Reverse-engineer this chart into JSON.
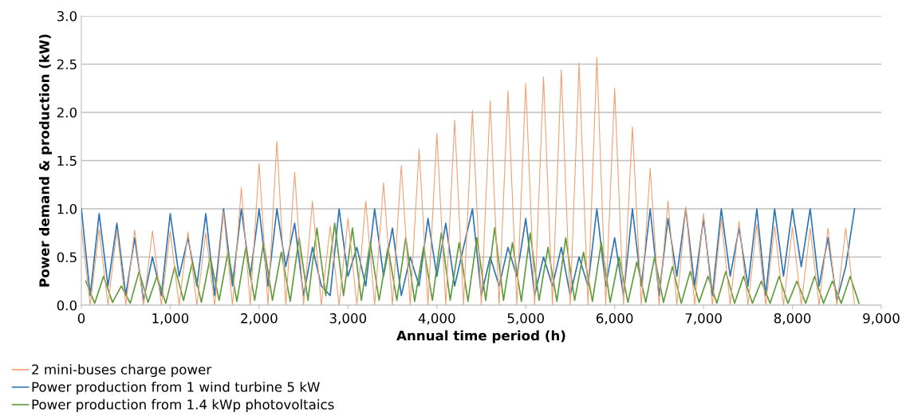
{
  "chart_data": {
    "type": "line",
    "xlabel": "Annual time period (h)",
    "ylabel": "Power demand & production (kW)",
    "xlim": [
      0,
      9000
    ],
    "xticks": [
      0,
      {
        "value": 1000,
        "label": "1,000"
      },
      {
        "value": 2000,
        "label": "2,000"
      },
      {
        "value": 3000,
        "label": "3,000"
      },
      {
        "value": 4000,
        "label": "4,000"
      },
      {
        "value": 5000,
        "label": "5,000"
      },
      {
        "value": 6000,
        "label": "6,000"
      },
      {
        "value": 7000,
        "label": "7,000"
      },
      {
        "value": 8000,
        "label": "8,000"
      },
      {
        "value": 9000,
        "label": "9,000"
      }
    ],
    "ylim": [
      0,
      3
    ],
    "yticks": [
      {
        "value": 0,
        "label": "0.0"
      },
      {
        "value": 0.5,
        "label": "0.5"
      },
      {
        "value": 1,
        "label": "1.0"
      },
      {
        "value": 1.5,
        "label": "1.5"
      },
      {
        "value": 2,
        "label": "2.0"
      },
      {
        "value": 2.5,
        "label": "2.5"
      },
      {
        "value": 3,
        "label": "3.0"
      }
    ],
    "grid": "y",
    "legend": "bottom left",
    "marker": "none",
    "line_style": "solid",
    "series": [
      {
        "name": "2 mini-buses charge power",
        "color": "#f0a070",
        "x": [
          0,
          100,
          200,
          300,
          400,
          500,
          600,
          700,
          800,
          900,
          1000,
          1100,
          1200,
          1300,
          1400,
          1500,
          1600,
          1700,
          1800,
          1900,
          2000,
          2100,
          2200,
          2300,
          2400,
          2500,
          2600,
          2700,
          2800,
          2900,
          3000,
          3100,
          3200,
          3300,
          3400,
          3500,
          3600,
          3700,
          3800,
          3900,
          4000,
          4100,
          4200,
          4300,
          4400,
          4500,
          4600,
          4700,
          4800,
          4900,
          5000,
          5100,
          5200,
          5300,
          5400,
          5500,
          5600,
          5700,
          5800,
          5900,
          6000,
          6100,
          6200,
          6300,
          6400,
          6500,
          6600,
          6700,
          6800,
          6900,
          7000,
          7100,
          7200,
          7300,
          7400,
          7500,
          7600,
          7700,
          7800,
          7900,
          8000,
          8100,
          8200,
          8300,
          8400,
          8500,
          8600,
          8700
        ],
        "values": [
          0.8,
          0,
          0.79,
          0,
          0.78,
          0,
          0.78,
          0,
          0.77,
          0,
          0.77,
          0,
          0.76,
          0,
          0.75,
          0,
          0.97,
          0,
          1.22,
          0,
          1.47,
          0,
          1.7,
          0,
          1.38,
          0,
          1.08,
          0,
          0.82,
          0,
          0.9,
          0,
          1.08,
          0,
          1.27,
          0,
          1.45,
          0,
          1.62,
          0,
          1.78,
          0,
          1.92,
          0,
          2.02,
          0,
          2.12,
          0,
          2.22,
          0,
          2.3,
          0,
          2.37,
          0,
          2.44,
          0,
          2.51,
          0,
          2.57,
          0,
          2.25,
          0,
          1.85,
          0,
          1.42,
          0,
          1.08,
          0,
          1.02,
          0,
          0.95,
          0,
          0.9,
          0,
          0.87,
          0,
          0.84,
          0,
          0.82,
          0,
          0.81,
          0,
          0.8,
          0,
          0.8,
          0,
          0.8,
          0
        ]
      },
      {
        "name": "Power production from 1 wind turbine 5 kW",
        "color": "#2e75b6",
        "x": [
          0,
          100,
          200,
          300,
          400,
          500,
          600,
          700,
          800,
          900,
          1000,
          1100,
          1200,
          1300,
          1400,
          1500,
          1600,
          1700,
          1800,
          1900,
          2000,
          2100,
          2200,
          2300,
          2400,
          2500,
          2600,
          2700,
          2800,
          2900,
          3000,
          3100,
          3200,
          3300,
          3400,
          3500,
          3600,
          3700,
          3800,
          3900,
          4000,
          4100,
          4200,
          4300,
          4400,
          4500,
          4600,
          4700,
          4800,
          4900,
          5000,
          5100,
          5200,
          5300,
          5400,
          5500,
          5600,
          5700,
          5800,
          5900,
          6000,
          6100,
          6200,
          6300,
          6400,
          6500,
          6600,
          6700,
          6800,
          6900,
          7000,
          7100,
          7200,
          7300,
          7400,
          7500,
          7600,
          7700,
          7800,
          7900,
          8000,
          8100,
          8200,
          8300,
          8400,
          8500,
          8600,
          8700
        ],
        "values": [
          1.0,
          0.1,
          0.95,
          0.2,
          0.85,
          0.1,
          0.7,
          0.05,
          0.5,
          0.1,
          0.95,
          0.3,
          0.7,
          0.2,
          0.95,
          0.1,
          1.0,
          0.2,
          1.0,
          0.3,
          1.0,
          0.2,
          1.0,
          0.4,
          0.85,
          0.1,
          0.6,
          0.2,
          0.1,
          1.0,
          0.3,
          0.6,
          0.2,
          1.0,
          0.3,
          0.8,
          0.1,
          0.5,
          0.2,
          0.9,
          0.3,
          0.85,
          0.2,
          0.6,
          1.0,
          0.1,
          0.5,
          0.2,
          0.6,
          0.3,
          0.9,
          0.1,
          0.5,
          0.2,
          0.6,
          0.1,
          0.5,
          0.2,
          1.0,
          0.2,
          0.7,
          0.1,
          1.0,
          0.2,
          1.0,
          0.1,
          0.9,
          0.3,
          1.0,
          0.2,
          0.9,
          0.1,
          1.0,
          0.3,
          0.8,
          0.2,
          1.0,
          0.1,
          1.0,
          0.3,
          1.0,
          0.4,
          1.0,
          0.2,
          0.7,
          0.05,
          0.4,
          1.0
        ]
      },
      {
        "name": "Power production from 1.4 kWp photovoltaics",
        "color": "#5e9c3a",
        "x": [
          50,
          150,
          250,
          350,
          450,
          550,
          650,
          750,
          850,
          950,
          1050,
          1150,
          1250,
          1350,
          1450,
          1550,
          1650,
          1750,
          1850,
          1950,
          2050,
          2150,
          2250,
          2350,
          2450,
          2550,
          2650,
          2750,
          2850,
          2950,
          3050,
          3150,
          3250,
          3350,
          3450,
          3550,
          3650,
          3750,
          3850,
          3950,
          4050,
          4150,
          4250,
          4350,
          4450,
          4550,
          4650,
          4750,
          4850,
          4950,
          5050,
          5150,
          5250,
          5350,
          5450,
          5550,
          5650,
          5750,
          5850,
          5950,
          6050,
          6150,
          6250,
          6350,
          6450,
          6550,
          6650,
          6750,
          6850,
          6950,
          7050,
          7150,
          7250,
          7350,
          7450,
          7550,
          7650,
          7750,
          7850,
          7950,
          8050,
          8150,
          8250,
          8350,
          8450,
          8550,
          8650,
          8750
        ],
        "values": [
          0.25,
          0.02,
          0.3,
          0.03,
          0.2,
          0.02,
          0.35,
          0.03,
          0.3,
          0.02,
          0.4,
          0.05,
          0.45,
          0.03,
          0.5,
          0.05,
          0.55,
          0.04,
          0.6,
          0.05,
          0.65,
          0.05,
          0.55,
          0.04,
          0.7,
          0.05,
          0.8,
          0.1,
          0.85,
          0.1,
          0.8,
          0.05,
          0.65,
          0.05,
          0.6,
          0.05,
          0.7,
          0.04,
          0.6,
          0.05,
          0.75,
          0.05,
          0.65,
          0.04,
          0.7,
          0.05,
          0.8,
          0.05,
          0.65,
          0.04,
          0.75,
          0.05,
          0.6,
          0.04,
          0.7,
          0.05,
          0.55,
          0.04,
          0.65,
          0.03,
          0.5,
          0.03,
          0.45,
          0.03,
          0.5,
          0.03,
          0.4,
          0.02,
          0.35,
          0.03,
          0.3,
          0.02,
          0.35,
          0.02,
          0.3,
          0.02,
          0.25,
          0.02,
          0.3,
          0.02,
          0.25,
          0.02,
          0.3,
          0.02,
          0.25,
          0.02,
          0.3,
          0.02
        ]
      }
    ]
  }
}
